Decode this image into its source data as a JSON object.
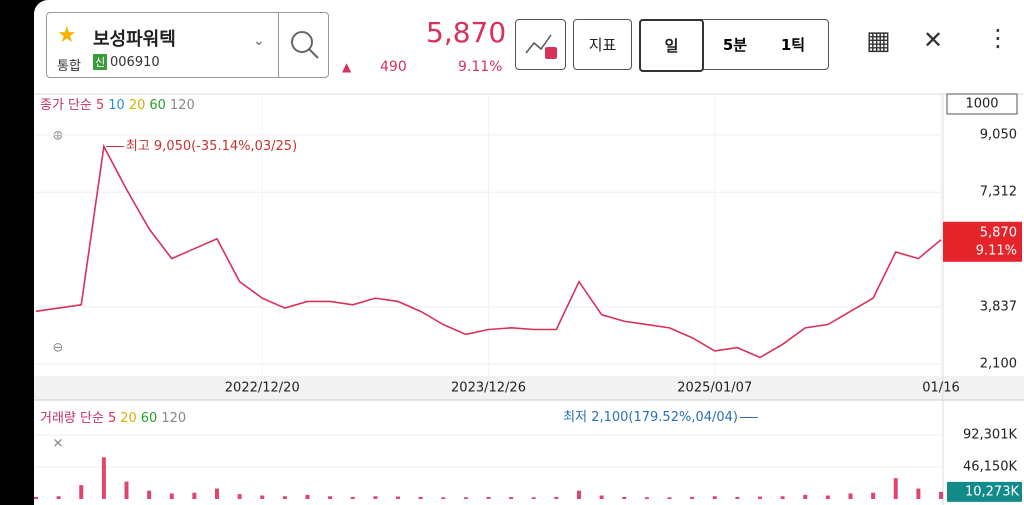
{
  "header": {
    "name": "보성파워텍",
    "market": "통합",
    "badge": "신",
    "code": "006910",
    "price": "5,870",
    "change": "490",
    "change_pct": "9.11%"
  },
  "toolbar": {
    "indicator": "지표",
    "tabs": [
      "일",
      "5분",
      "1틱"
    ]
  },
  "price_legend": {
    "label": "종가 단순",
    "periods": [
      "5",
      "10",
      "20",
      "60",
      "120"
    ]
  },
  "volume_legend": {
    "label": "거래량 단순",
    "periods": [
      "5",
      "20",
      "60",
      "120"
    ]
  },
  "interval": "1000",
  "chart_data": [
    {
      "type": "line",
      "color": "#d8315b",
      "categories": [
        null,
        null,
        null,
        null,
        null,
        null,
        null,
        null,
        null,
        null,
        "2022/12/20",
        null,
        null,
        null,
        null,
        null,
        null,
        null,
        null,
        null,
        "2023/12/26",
        null,
        null,
        null,
        null,
        null,
        null,
        null,
        null,
        null,
        "2025/01/07",
        null,
        null,
        null,
        null,
        null,
        null,
        null,
        null,
        null,
        "01/16"
      ],
      "values": [
        3700,
        3800,
        3900,
        8700,
        7400,
        6200,
        5300,
        5600,
        5900,
        4600,
        4100,
        3800,
        4000,
        4000,
        3900,
        4100,
        4000,
        3700,
        3300,
        3000,
        3150,
        3200,
        3150,
        3150,
        4600,
        3600,
        3400,
        3300,
        3200,
        2900,
        2500,
        2600,
        2300,
        2700,
        3200,
        3300,
        3700,
        4100,
        5500,
        5300,
        5870
      ],
      "ylim": [
        1770,
        10260
      ],
      "yticks": [
        {
          "value": 9050,
          "label": "9,050"
        },
        {
          "value": 7312,
          "label": "7,312"
        },
        {
          "value": 3837,
          "label": "3,837"
        },
        {
          "value": 2100,
          "label": "2,100"
        }
      ],
      "annotations": [
        "최고 9,050(-35.14%,03/25)",
        "최저 2,100(179.52%,04/04)"
      ]
    },
    {
      "type": "bar",
      "color": "#e0456b",
      "values": [
        3000,
        4000,
        20000,
        60000,
        25000,
        12000,
        8000,
        9000,
        15000,
        7000,
        5000,
        4000,
        6000,
        4000,
        3000,
        4000,
        3500,
        3000,
        2500,
        2500,
        3000,
        2800,
        2500,
        3000,
        12000,
        5000,
        3000,
        2500,
        2500,
        3000,
        4000,
        3000,
        3500,
        4000,
        6000,
        5000,
        8000,
        9000,
        30000,
        15000,
        10273
      ],
      "ylim": [
        0,
        131000
      ],
      "yticks": [
        {
          "value": 92301,
          "label": "92,301K"
        },
        {
          "value": 46150,
          "label": "46,150K"
        }
      ],
      "last": {
        "value": 10273,
        "label": "10,273K"
      }
    }
  ]
}
